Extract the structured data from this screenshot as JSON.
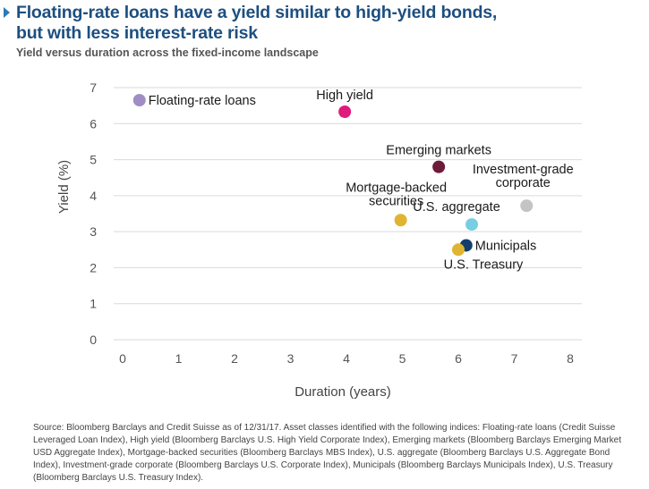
{
  "title": {
    "line1": "Floating-rate loans have a yield similar to high-yield bonds,",
    "line2": "but with less interest-rate risk"
  },
  "subtitle": "Yield versus duration across the fixed-income landscape",
  "chart_data": {
    "type": "scatter",
    "xlabel": "Duration (years)",
    "ylabel": "Yield (%)",
    "xlim": [
      0,
      8
    ],
    "ylim": [
      0,
      7
    ],
    "x_ticks": [
      "0",
      "1",
      "2",
      "3",
      "4",
      "5",
      "6",
      "7",
      "8"
    ],
    "y_ticks": [
      "0",
      "1",
      "2",
      "3",
      "4",
      "5",
      "6",
      "7"
    ],
    "grid": "horizontal",
    "points": [
      {
        "label": "Floating-rate loans",
        "x": 0.3,
        "y": 6.65,
        "color": "#9f8dc4",
        "label_pos": "right"
      },
      {
        "label": "High yield",
        "x": 3.97,
        "y": 6.33,
        "color": "#e0197d",
        "label_pos": "above"
      },
      {
        "label": "Emerging markets",
        "x": 5.65,
        "y": 4.8,
        "color": "#6e1a39",
        "label_pos": "above"
      },
      {
        "label": "Investment-grade corporate",
        "x": 7.22,
        "y": 3.72,
        "color": "#c4c4c4",
        "label_pos": "above-right"
      },
      {
        "label": "Mortgage-backed securities",
        "x": 4.97,
        "y": 3.32,
        "color": "#e0b431",
        "label_pos": "above-left"
      },
      {
        "label": "U.S. aggregate",
        "x": 6.24,
        "y": 3.2,
        "color": "#76cfe0",
        "label_pos": "above-left"
      },
      {
        "label": "Municipals",
        "x": 6.14,
        "y": 2.62,
        "color": "#123e6b",
        "label_pos": "right"
      },
      {
        "label": "U.S. Treasury",
        "x": 6.0,
        "y": 2.5,
        "color": "#e0b431",
        "label_pos": "below"
      }
    ]
  },
  "source": "Source: Bloomberg Barclays and Credit Suisse as of 12/31/17. Asset classes identified with the following indices: Floating-rate loans (Credit Suisse Leveraged Loan Index), High yield (Bloomberg Barclays U.S. High Yield Corporate Index), Emerging markets (Bloomberg Barclays Emerging Market USD Aggregate Index), Mortgage-backed securities (Bloomberg Barclays MBS Index), U.S. aggregate (Bloomberg Barclays U.S. Aggregate Bond Index), Investment-grade corporate (Bloomberg Barclays U.S. Corporate Index), Municipals (Bloomberg Barclays Municipals Index), U.S. Treasury (Bloomberg Barclays U.S. Treasury Index)."
}
